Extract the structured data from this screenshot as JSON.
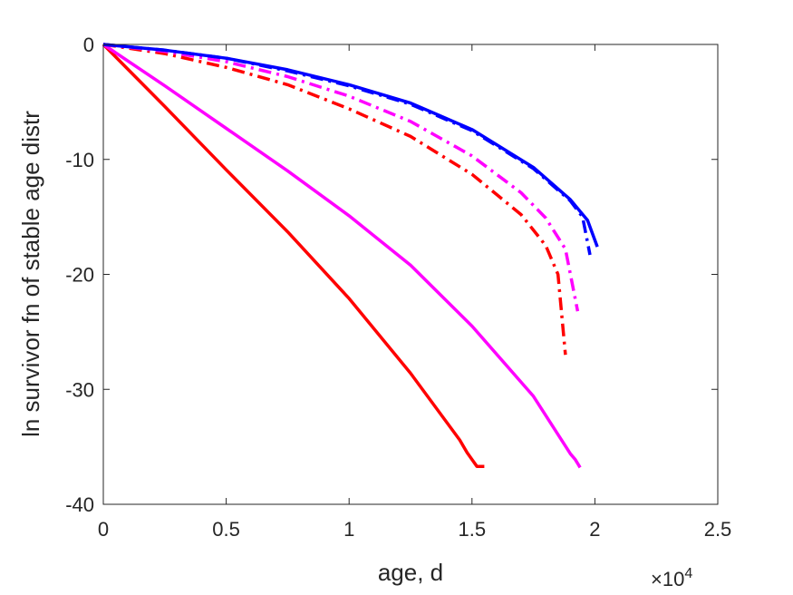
{
  "chart_data": {
    "type": "line",
    "title": "",
    "xlabel": "age, d",
    "ylabel": "ln survivor fn of stable age distr",
    "x_multiplier_label": {
      "base": "×10",
      "exponent": "4"
    },
    "xlim": [
      0,
      25000
    ],
    "ylim": [
      -40,
      0
    ],
    "x_ticks": [
      0,
      5000,
      10000,
      15000,
      20000,
      25000
    ],
    "x_tick_labels": [
      "0",
      "0.5",
      "1",
      "1.5",
      "2",
      "2.5"
    ],
    "y_ticks": [
      0,
      -10,
      -20,
      -30,
      -40
    ],
    "y_tick_labels": [
      "0",
      "-10",
      "-20",
      "-30",
      "-40"
    ],
    "grid": false,
    "legend": "none",
    "series": [
      {
        "color": "#ff0000",
        "style": "solid",
        "x": [
          0,
          2500,
          5000,
          7500,
          10000,
          12500,
          14500,
          14800,
          15000,
          15200,
          15500
        ],
        "y": [
          0,
          -5.4,
          -10.9,
          -16.3,
          -22.1,
          -28.6,
          -34.4,
          -35.5,
          -36.1,
          -36.7,
          -36.7
        ]
      },
      {
        "color": "#ff00ff",
        "style": "solid",
        "x": [
          0,
          2500,
          5000,
          7500,
          10000,
          12500,
          15000,
          17500,
          19000,
          19200,
          19400
        ],
        "y": [
          0,
          -3.6,
          -7.3,
          -11.0,
          -14.9,
          -19.2,
          -24.5,
          -30.6,
          -35.6,
          -36.1,
          -36.8
        ]
      },
      {
        "color": "#ff0000",
        "style": "dashdot",
        "x": [
          0,
          2500,
          5000,
          7500,
          10000,
          12500,
          15000,
          17000,
          18000,
          18500,
          18800
        ],
        "y": [
          0,
          -0.8,
          -2.0,
          -3.5,
          -5.6,
          -8.0,
          -11.3,
          -14.8,
          -17.5,
          -20.0,
          -27.0
        ]
      },
      {
        "color": "#ff00ff",
        "style": "dashdot",
        "x": [
          0,
          2500,
          5000,
          7500,
          10000,
          12500,
          15000,
          17000,
          18000,
          18800,
          19300
        ],
        "y": [
          0,
          -0.6,
          -1.5,
          -2.8,
          -4.5,
          -6.7,
          -9.7,
          -12.9,
          -15.1,
          -17.8,
          -23.2
        ]
      },
      {
        "color": "#0000ff",
        "style": "dashdot",
        "x": [
          0,
          2500,
          5000,
          7500,
          10000,
          12500,
          15000,
          17500,
          19000,
          19500,
          19800
        ],
        "y": [
          0,
          -0.5,
          -1.2,
          -2.3,
          -3.6,
          -5.2,
          -7.5,
          -10.8,
          -13.6,
          -15.0,
          -18.3
        ]
      },
      {
        "color": "#0000ff",
        "style": "solid",
        "x": [
          0,
          2500,
          5000,
          7500,
          10000,
          12500,
          15000,
          17500,
          19000,
          19700,
          20100
        ],
        "y": [
          0,
          -0.5,
          -1.2,
          -2.2,
          -3.5,
          -5.1,
          -7.4,
          -10.7,
          -13.5,
          -15.3,
          -17.6
        ]
      }
    ]
  }
}
